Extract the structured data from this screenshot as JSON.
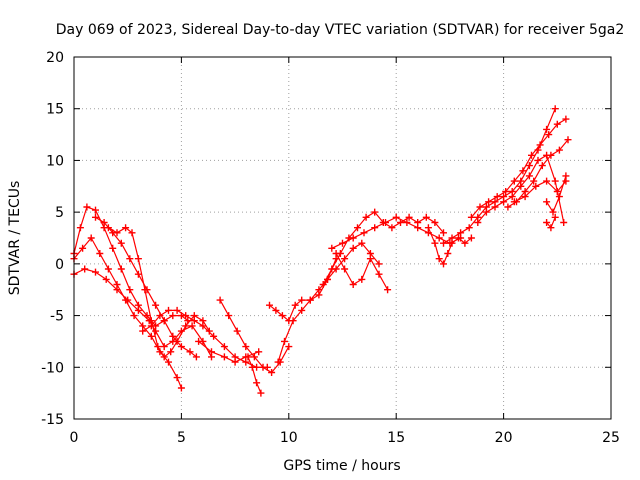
{
  "chart_data": {
    "type": "scatter",
    "title": "Day 069 of 2023, Sidereal Day-to-day VTEC variation (SDTVAR) for receiver 5ga2",
    "xlabel": "GPS time / hours",
    "ylabel": "SDTVAR / TECUs",
    "xlim": [
      0,
      25
    ],
    "ylim": [
      -15,
      20
    ],
    "xticks": [
      0,
      5,
      10,
      15,
      20,
      25
    ],
    "yticks": [
      -15,
      -10,
      -5,
      0,
      5,
      10,
      15,
      20
    ],
    "grid": true,
    "marker": "plus",
    "color": "#ff0000",
    "series": [
      {
        "x": [
          0.0,
          0.3,
          0.6,
          1.0,
          1.4,
          1.8,
          2.2,
          2.6,
          3.0,
          3.4,
          3.8,
          4.2,
          4.6,
          5.0,
          5.3
        ],
        "y": [
          1.0,
          3.5,
          5.5,
          5.2,
          3.5,
          1.5,
          -0.5,
          -2.5,
          -4.0,
          -5.0,
          -6.0,
          -5.5,
          -5.0,
          -5.0,
          -5.5
        ]
      },
      {
        "x": [
          0.0,
          0.5,
          1.0,
          1.5,
          2.0,
          2.5,
          3.0,
          3.5,
          3.8,
          4.2,
          4.6,
          5.0,
          5.5,
          6.0,
          6.4
        ],
        "y": [
          -1.0,
          -0.5,
          -0.8,
          -1.5,
          -2.5,
          -3.5,
          -4.5,
          -5.5,
          -6.5,
          -8.0,
          -7.5,
          -6.5,
          -6.0,
          -7.5,
          -9.0
        ]
      },
      {
        "x": [
          0.0,
          0.4,
          0.8,
          1.2,
          1.6,
          2.0,
          2.4,
          2.8,
          3.2,
          3.6,
          4.0,
          4.4,
          4.8,
          5.0
        ],
        "y": [
          0.5,
          1.5,
          2.5,
          1.0,
          -0.5,
          -2.0,
          -3.5,
          -5.0,
          -6.0,
          -7.0,
          -8.5,
          -9.5,
          -11.0,
          -12.0
        ]
      },
      {
        "x": [
          1.0,
          1.4,
          1.8,
          2.2,
          2.6,
          3.0,
          3.4,
          3.8,
          4.2,
          4.6,
          5.0,
          5.4,
          5.7
        ],
        "y": [
          4.5,
          4.0,
          3.0,
          2.0,
          0.5,
          -1.0,
          -2.5,
          -4.0,
          -5.5,
          -7.0,
          -8.0,
          -8.5,
          -9.0
        ]
      },
      {
        "x": [
          1.6,
          2.0,
          2.4,
          2.7,
          3.0,
          3.3,
          3.6,
          3.9,
          4.2,
          4.5,
          4.8,
          5.2,
          5.6,
          6.0,
          6.3
        ],
        "y": [
          3.5,
          3.0,
          3.5,
          3.0,
          0.5,
          -2.5,
          -5.5,
          -8.0,
          -9.0,
          -8.5,
          -7.5,
          -6.0,
          -5.0,
          -5.5,
          -6.5
        ]
      },
      {
        "x": [
          3.2,
          3.6,
          4.0,
          4.4,
          4.8,
          5.2,
          5.6,
          6.0,
          6.5,
          7.0,
          7.5,
          8.0,
          8.5,
          9.0
        ],
        "y": [
          -6.5,
          -6.0,
          -5.0,
          -4.5,
          -4.5,
          -5.0,
          -5.5,
          -6.0,
          -7.0,
          -8.0,
          -9.0,
          -9.5,
          -10.0,
          -10.0
        ]
      },
      {
        "x": [
          5.8,
          6.4,
          7.0,
          7.5,
          8.0,
          8.6
        ],
        "y": [
          -7.5,
          -8.5,
          -9.0,
          -9.5,
          -9.0,
          -8.5
        ]
      },
      {
        "x": [
          6.8,
          7.2,
          7.6,
          8.0,
          8.4,
          8.8,
          9.2,
          9.6,
          10.0
        ],
        "y": [
          -3.5,
          -5.0,
          -6.5,
          -8.0,
          -9.0,
          -10.0,
          -10.5,
          -9.5,
          -8.0
        ]
      },
      {
        "x": [
          8.1,
          8.3,
          8.5,
          8.7
        ],
        "y": [
          -9.0,
          -10.0,
          -11.5,
          -12.5
        ]
      },
      {
        "x": [
          9.1,
          9.4,
          9.7,
          10.0,
          10.3,
          10.6,
          11.0,
          11.4,
          11.8,
          12.2,
          12.6,
          13.0,
          13.4,
          13.8,
          14.2
        ],
        "y": [
          -4.0,
          -4.5,
          -5.0,
          -5.5,
          -4.0,
          -3.5,
          -3.5,
          -2.5,
          -1.5,
          -0.5,
          0.5,
          1.5,
          2.0,
          1.0,
          0.0
        ]
      },
      {
        "x": [
          9.5,
          9.8,
          10.2,
          10.6,
          11.0,
          11.4,
          11.8,
          12.2
        ],
        "y": [
          -9.5,
          -7.5,
          -5.5,
          -4.5,
          -3.5,
          -3.0,
          -1.5,
          0.5
        ]
      },
      {
        "x": [
          11.6,
          12.0,
          12.4,
          12.8,
          13.2,
          13.6,
          14.0,
          14.4,
          14.8,
          15.2,
          15.6,
          16.0,
          16.4,
          16.8,
          17.2
        ],
        "y": [
          -2.0,
          -0.5,
          1.0,
          2.5,
          3.5,
          4.5,
          5.0,
          4.0,
          3.5,
          4.0,
          4.5,
          4.0,
          4.5,
          4.0,
          3.0
        ]
      },
      {
        "x": [
          12.2,
          12.6,
          13.0,
          13.4,
          13.8,
          14.2,
          14.6
        ],
        "y": [
          1.0,
          -0.5,
          -2.0,
          -1.5,
          0.5,
          -1.0,
          -2.5
        ]
      },
      {
        "x": [
          12.0,
          12.5,
          13.0,
          13.5,
          14.0,
          14.5,
          15.0,
          15.5,
          16.0,
          16.5,
          17.0,
          17.5,
          18.0
        ],
        "y": [
          1.5,
          2.0,
          2.5,
          3.0,
          3.5,
          4.0,
          4.5,
          4.0,
          3.5,
          3.0,
          2.5,
          2.0,
          2.5
        ]
      },
      {
        "x": [
          16.5,
          16.8,
          17.0,
          17.2,
          17.4,
          17.6,
          17.9,
          18.2,
          18.5
        ],
        "y": [
          3.5,
          2.0,
          0.5,
          0.0,
          1.0,
          2.0,
          2.5,
          2.0,
          2.5
        ]
      },
      {
        "x": [
          17.2,
          17.6,
          18.0,
          18.4,
          18.8,
          19.2,
          19.6,
          20.0,
          20.4,
          20.8,
          21.2,
          21.6,
          22.0,
          22.4
        ],
        "y": [
          2.0,
          2.5,
          3.0,
          3.5,
          4.5,
          5.5,
          6.0,
          6.5,
          7.0,
          8.0,
          9.5,
          11.0,
          13.0,
          15.0
        ]
      },
      {
        "x": [
          18.5,
          18.9,
          19.3,
          19.7,
          20.1,
          20.5,
          20.9,
          21.3,
          21.7,
          22.1,
          22.5,
          22.9
        ],
        "y": [
          4.5,
          5.5,
          6.0,
          6.5,
          7.0,
          8.0,
          9.0,
          10.5,
          11.5,
          12.5,
          13.5,
          14.0
        ]
      },
      {
        "x": [
          18.8,
          19.2,
          19.6,
          20.0,
          20.4,
          20.8,
          21.2,
          21.6,
          22.0,
          22.4,
          22.8
        ],
        "y": [
          4.0,
          5.0,
          5.5,
          6.0,
          6.5,
          7.5,
          8.5,
          10.0,
          10.5,
          8.0,
          4.0
        ]
      },
      {
        "x": [
          20.2,
          20.6,
          21.0,
          21.4,
          21.8,
          22.2,
          22.6,
          23.0
        ],
        "y": [
          5.5,
          6.0,
          7.0,
          8.0,
          9.5,
          10.5,
          11.0,
          12.0
        ]
      },
      {
        "x": [
          20.5,
          21.0,
          21.5,
          22.0,
          22.5,
          22.9
        ],
        "y": [
          6.0,
          6.5,
          7.5,
          8.0,
          7.0,
          8.0
        ]
      },
      {
        "x": [
          22.0,
          22.3,
          22.6,
          22.9
        ],
        "y": [
          6.0,
          5.0,
          6.5,
          8.5
        ]
      },
      {
        "x": [
          22.0,
          22.2,
          22.4
        ],
        "y": [
          4.0,
          3.5,
          4.5
        ]
      }
    ]
  }
}
